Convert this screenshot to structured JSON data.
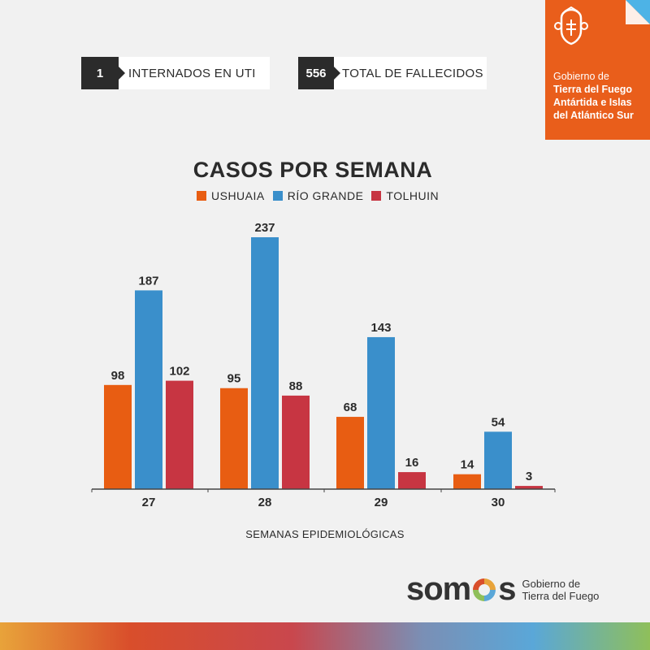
{
  "stats": [
    {
      "value": "1",
      "label": "INTERNADOS EN UTI"
    },
    {
      "value": "556",
      "label": "TOTAL DE FALLECIDOS"
    }
  ],
  "government": {
    "line1": "Gobierno de",
    "line2": "Tierra del Fuego",
    "line3": "Antártida e Islas",
    "line4": "del Atlántico Sur",
    "color": "#e95e1b"
  },
  "chart_data": {
    "type": "bar",
    "title": "CASOS POR SEMANA",
    "xlabel": "SEMANAS EPIDEMIOLÓGICAS",
    "ylabel": "",
    "categories": [
      "27",
      "28",
      "29",
      "30"
    ],
    "series": [
      {
        "name": "USHUAIA",
        "color": "#e85d12",
        "values": [
          98,
          95,
          68,
          14
        ]
      },
      {
        "name": "RÍO GRANDE",
        "color": "#3a8fcb",
        "values": [
          187,
          237,
          143,
          54
        ]
      },
      {
        "name": "TOLHUIN",
        "color": "#c73542",
        "values": [
          102,
          88,
          16,
          3
        ]
      }
    ],
    "ylim": [
      0,
      237
    ],
    "grid": false,
    "legend": "top-center"
  },
  "brand": {
    "word_start": "som",
    "word_end": "s",
    "sub1": "Gobierno de",
    "sub2": "Tierra del Fuego"
  }
}
